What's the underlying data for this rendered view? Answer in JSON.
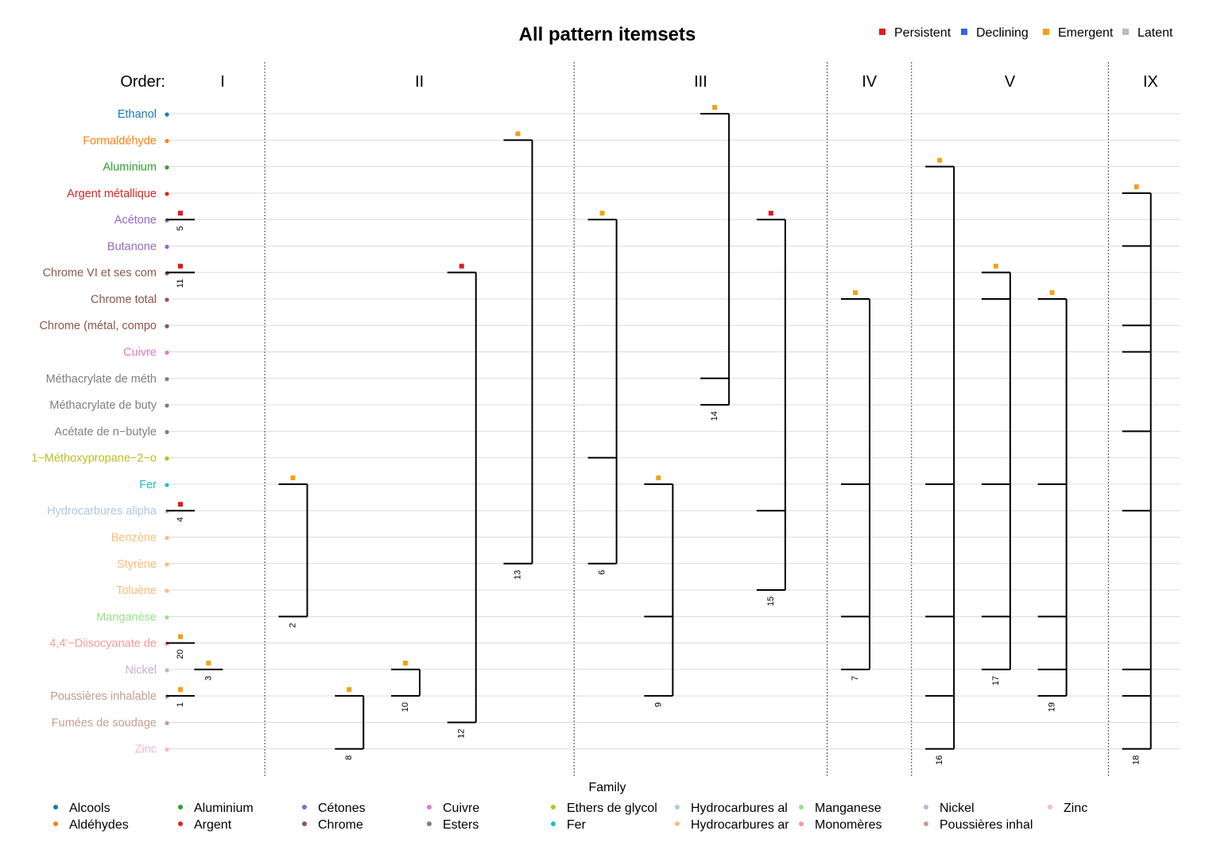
{
  "chart_data": {
    "type": "itemset-dendrogram",
    "title": "All pattern itemsets",
    "order_label": "Order:",
    "legend_title": "Family",
    "status_legend": [
      {
        "name": "Persistent",
        "color": "#e31a1c"
      },
      {
        "name": "Declining",
        "color": "#3366dd"
      },
      {
        "name": "Emergent",
        "color": "#f2a20f"
      },
      {
        "name": "Latent",
        "color": "#bbbbbb"
      }
    ],
    "families": [
      {
        "name": "Alcools",
        "color": "#1f77b4"
      },
      {
        "name": "Aldéhydes",
        "color": "#ff7f0e"
      },
      {
        "name": "Aluminium",
        "color": "#2ca02c"
      },
      {
        "name": "Argent",
        "color": "#d62728"
      },
      {
        "name": "Cétones",
        "color": "#9467bd"
      },
      {
        "name": "Chrome",
        "color": "#8c564b"
      },
      {
        "name": "Cuivre",
        "color": "#e377c2"
      },
      {
        "name": "Esters",
        "color": "#7f7f7f"
      },
      {
        "name": "Ethers de glycol",
        "color": "#bcbd22"
      },
      {
        "name": "Fer",
        "color": "#17becf"
      },
      {
        "name": "Hydrocarbures al",
        "color": "#aec7e8"
      },
      {
        "name": "Hydrocarbures ar",
        "color": "#ffbb78"
      },
      {
        "name": "Manganese",
        "color": "#98df8a"
      },
      {
        "name": "Monomères",
        "color": "#ff9896"
      },
      {
        "name": "Nickel",
        "color": "#c5b0d5"
      },
      {
        "name": "Poussières inhal",
        "color": "#c49c94"
      },
      {
        "name": "Zinc",
        "color": "#f7b6d2"
      }
    ],
    "items": [
      {
        "label": "Ethanol",
        "family": "Alcools"
      },
      {
        "label": "Formaldéhyde",
        "family": "Aldéhydes"
      },
      {
        "label": "Aluminium",
        "family": "Aluminium"
      },
      {
        "label": "Argent métallique",
        "family": "Argent"
      },
      {
        "label": "Acétone",
        "family": "Cétones"
      },
      {
        "label": "Butanone",
        "family": "Cétones"
      },
      {
        "label": "Chrome VI et ses com",
        "family": "Chrome"
      },
      {
        "label": "Chrome total",
        "family": "Chrome"
      },
      {
        "label": "Chrome (métal, compo",
        "family": "Chrome"
      },
      {
        "label": "Cuivre",
        "family": "Cuivre"
      },
      {
        "label": "Méthacrylate de méth",
        "family": "Esters"
      },
      {
        "label": "Méthacrylate de buty",
        "family": "Esters"
      },
      {
        "label": "Acétate de n−butyle",
        "family": "Esters"
      },
      {
        "label": "1−Méthoxypropane−2−o",
        "family": "Ethers de glycol"
      },
      {
        "label": "Fer",
        "family": "Fer"
      },
      {
        "label": "Hydrocarbures alipha",
        "family": "Hydrocarbures al"
      },
      {
        "label": "Benzène",
        "family": "Hydrocarbures ar"
      },
      {
        "label": "Styrène",
        "family": "Hydrocarbures ar"
      },
      {
        "label": "Toluène",
        "family": "Hydrocarbures ar"
      },
      {
        "label": "Manganèse",
        "family": "Manganese"
      },
      {
        "label": "4,4'−Diisocyanate de",
        "family": "Monomères"
      },
      {
        "label": "Nickel",
        "family": "Nickel"
      },
      {
        "label": "Poussières inhalable",
        "family": "Poussières inhal"
      },
      {
        "label": "Fumées de soudage",
        "family": "Poussières inhal"
      },
      {
        "label": "Zinc",
        "family": "Zinc"
      }
    ],
    "orders": [
      {
        "label": "I",
        "start": 0,
        "end": 1.5
      },
      {
        "label": "II",
        "start": 1.5,
        "end": 7
      },
      {
        "label": "III",
        "start": 7,
        "end": 11.5
      },
      {
        "label": "IV",
        "start": 11.5,
        "end": 13
      },
      {
        "label": "V",
        "start": 13,
        "end": 16.5
      },
      {
        "label": "IX",
        "start": 16.5,
        "end": 18
      }
    ],
    "patterns": [
      {
        "id": "5",
        "x": 0.5,
        "status": "Persistent",
        "items": [
          4
        ]
      },
      {
        "id": "11",
        "x": 0.5,
        "status": "Persistent",
        "items": [
          6
        ]
      },
      {
        "id": "4",
        "x": 0.5,
        "status": "Persistent",
        "items": [
          15
        ]
      },
      {
        "id": "20",
        "x": 0.5,
        "status": "Emergent",
        "items": [
          20
        ]
      },
      {
        "id": "1",
        "x": 0.5,
        "status": "Emergent",
        "items": [
          22
        ]
      },
      {
        "id": "3",
        "x": 1.0,
        "status": "Emergent",
        "items": [
          21
        ]
      },
      {
        "id": "2",
        "x": 2.5,
        "status": "Emergent",
        "items": [
          14,
          19
        ]
      },
      {
        "id": "8",
        "x": 3.5,
        "status": "Emergent",
        "items": [
          22,
          24
        ]
      },
      {
        "id": "10",
        "x": 4.5,
        "status": "Emergent",
        "items": [
          21,
          22
        ]
      },
      {
        "id": "12",
        "x": 5.5,
        "status": "Persistent",
        "items": [
          6,
          23
        ]
      },
      {
        "id": "13",
        "x": 6.5,
        "status": "Emergent",
        "items": [
          1,
          17
        ]
      },
      {
        "id": "6",
        "x": 8.0,
        "status": "Emergent",
        "items": [
          4,
          13,
          17
        ]
      },
      {
        "id": "9",
        "x": 9.0,
        "status": "Emergent",
        "items": [
          14,
          19,
          22
        ]
      },
      {
        "id": "14",
        "x": 10.0,
        "status": "Emergent",
        "items": [
          0,
          10,
          11
        ]
      },
      {
        "id": "15",
        "x": 11.0,
        "status": "Persistent",
        "items": [
          4,
          15,
          18
        ]
      },
      {
        "id": "7",
        "x": 12.5,
        "status": "Emergent",
        "items": [
          7,
          14,
          19,
          21
        ]
      },
      {
        "id": "16",
        "x": 14.0,
        "status": "Emergent",
        "items": [
          2,
          14,
          19,
          22,
          24
        ]
      },
      {
        "id": "17",
        "x": 15.0,
        "status": "Emergent",
        "items": [
          6,
          7,
          14,
          19,
          21
        ]
      },
      {
        "id": "19",
        "x": 16.0,
        "status": "Emergent",
        "items": [
          7,
          14,
          19,
          21,
          22
        ]
      },
      {
        "id": "18",
        "x": 17.5,
        "status": "Emergent",
        "items": [
          3,
          5,
          8,
          9,
          12,
          15,
          21,
          22,
          24
        ]
      }
    ]
  }
}
